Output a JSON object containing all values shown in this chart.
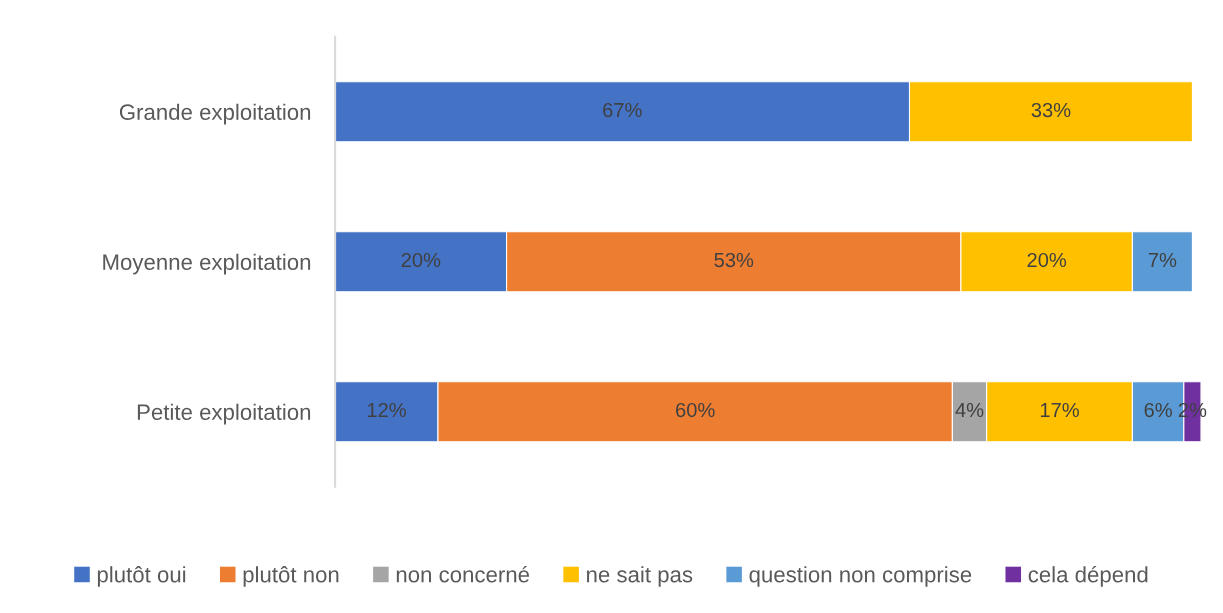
{
  "chart_data": {
    "type": "bar",
    "orientation": "horizontal",
    "stacked": true,
    "categories": [
      "Grande exploitation",
      "Moyenne exploitation",
      "Petite exploitation"
    ],
    "xlim": [
      0,
      101
    ],
    "tick_labels": "y",
    "grid": false,
    "legend": "bottom",
    "series": [
      {
        "name": "plutôt oui",
        "color": "#4472c4",
        "values": [
          67,
          20,
          12
        ],
        "value_labels": [
          "67%",
          "20%",
          "12%"
        ]
      },
      {
        "name": "plutôt non",
        "color": "#ed7d31",
        "values": [
          null,
          53,
          60
        ],
        "value_labels": [
          null,
          "53%",
          "60%"
        ]
      },
      {
        "name": "non concerné",
        "color": "#a5a5a5",
        "values": [
          null,
          null,
          4
        ],
        "value_labels": [
          null,
          null,
          "4%"
        ]
      },
      {
        "name": "ne sait pas",
        "color": "#ffc000",
        "values": [
          33,
          20,
          17
        ],
        "value_labels": [
          "33%",
          "20%",
          "17%"
        ]
      },
      {
        "name": "question non comprise",
        "color": "#5b9bd5",
        "values": [
          null,
          7,
          6
        ],
        "value_labels": [
          null,
          "7%",
          "6%"
        ]
      },
      {
        "name": "cela dépend",
        "color": "#7030a0",
        "values": [
          null,
          null,
          2
        ],
        "value_labels": [
          null,
          null,
          "2%"
        ]
      }
    ]
  }
}
